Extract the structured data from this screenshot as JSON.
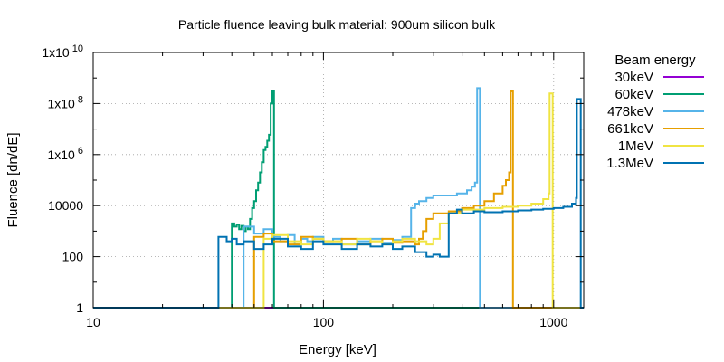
{
  "chart_data": {
    "type": "line",
    "title": "Particle fluence leaving bulk material: 900um silicon bulk",
    "xlabel": "Energy [keV]",
    "ylabel": "Fluence [dn/dE]",
    "x_scale": "log",
    "y_scale": "log",
    "xlim": [
      10,
      1350
    ],
    "ylim": [
      1,
      10000000000
    ],
    "grid": true,
    "x_ticks": [
      {
        "value": 10,
        "label": "10"
      },
      {
        "value": 100,
        "label": "100"
      },
      {
        "value": 1000,
        "label": "1000"
      }
    ],
    "y_ticks": [
      {
        "value": 1,
        "label": "1"
      },
      {
        "value": 100,
        "label": "100"
      },
      {
        "value": 10000,
        "label": "10000"
      },
      {
        "value": 1000000,
        "label": "1x10",
        "exp": "6"
      },
      {
        "value": 100000000,
        "label": "1x10",
        "exp": "8"
      },
      {
        "value": 10000000000,
        "label": "1x10",
        "exp": "10"
      }
    ],
    "legend_title": "Beam energy",
    "legend_position": "outside-right",
    "series": [
      {
        "name": "30keV",
        "color": "#9400d3",
        "x": [
          10,
          1350
        ],
        "y": [
          1,
          1
        ]
      },
      {
        "name": "60keV",
        "color": "#009e73",
        "x": [
          10,
          39.5,
          40,
          41,
          42,
          43,
          44,
          45,
          46,
          47,
          48,
          49,
          50,
          51,
          52,
          53,
          54,
          55,
          56,
          57,
          58,
          59,
          60,
          61,
          1350
        ],
        "y": [
          1,
          1,
          2000,
          1500,
          1800,
          1200,
          1600,
          1000,
          1500,
          1200,
          3000,
          8000,
          15000,
          40000,
          80000,
          200000,
          500000,
          1500000,
          2000000,
          3500000,
          6000000,
          100000000,
          300000000,
          1,
          1
        ]
      },
      {
        "name": "478keV",
        "color": "#56b4e9",
        "x": [
          10,
          40,
          45,
          50,
          55,
          60,
          65,
          70,
          75,
          80,
          85,
          90,
          100,
          110,
          120,
          140,
          160,
          180,
          200,
          220,
          240,
          250,
          260,
          280,
          300,
          340,
          380,
          420,
          440,
          455,
          465,
          470,
          478,
          480,
          1350
        ],
        "y": [
          1,
          1,
          1500,
          800,
          1200,
          600,
          400,
          700,
          300,
          500,
          400,
          600,
          400,
          500,
          300,
          400,
          500,
          350,
          450,
          600,
          8000,
          12000,
          15000,
          20000,
          25000,
          25000,
          30000,
          40000,
          55000,
          80000,
          400000000,
          400000000,
          1,
          1,
          1
        ]
      },
      {
        "name": "661keV",
        "color": "#e69f00",
        "x": [
          10,
          45,
          50,
          55,
          60,
          70,
          80,
          90,
          100,
          120,
          140,
          160,
          180,
          200,
          220,
          250,
          260,
          270,
          280,
          300,
          350,
          400,
          450,
          500,
          550,
          600,
          620,
          640,
          650,
          661,
          665,
          1350
        ],
        "y": [
          1,
          1,
          600,
          800,
          400,
          300,
          600,
          500,
          400,
          500,
          300,
          400,
          500,
          350,
          400,
          300,
          500,
          1000,
          3000,
          5000,
          6000,
          8000,
          10000,
          15000,
          30000,
          60000,
          100000,
          200000,
          300000000,
          300000000,
          1,
          1
        ]
      },
      {
        "name": "1MeV",
        "color": "#f0e442",
        "x": [
          10,
          50,
          55,
          60,
          70,
          80,
          90,
          100,
          120,
          140,
          160,
          180,
          200,
          220,
          250,
          280,
          300,
          320,
          350,
          400,
          500,
          600,
          700,
          800,
          900,
          950,
          960,
          980,
          990,
          1350
        ],
        "y": [
          1,
          1,
          500,
          700,
          400,
          300,
          500,
          400,
          300,
          500,
          400,
          300,
          400,
          500,
          400,
          300,
          500,
          2000,
          5000,
          7000,
          8000,
          9000,
          10000,
          12000,
          18000,
          30000,
          250000000,
          250000000,
          1,
          1
        ]
      },
      {
        "name": "1.3MeV",
        "color": "#0072b2",
        "x": [
          10,
          33,
          35,
          38,
          40,
          42,
          45,
          50,
          55,
          60,
          70,
          80,
          90,
          100,
          120,
          140,
          160,
          180,
          200,
          220,
          250,
          280,
          300,
          320,
          350,
          380,
          400,
          450,
          500,
          600,
          700,
          800,
          900,
          1000,
          1100,
          1200,
          1250,
          1260,
          1300,
          1310,
          1350
        ],
        "y": [
          1,
          1,
          600,
          400,
          500,
          300,
          400,
          200,
          300,
          500,
          250,
          200,
          400,
          300,
          200,
          300,
          250,
          300,
          200,
          250,
          150,
          100,
          120,
          100,
          5000,
          7000,
          5000,
          6000,
          5500,
          6000,
          6500,
          7000,
          7500,
          8000,
          9000,
          12000,
          20000,
          150000000,
          150000000,
          1,
          1
        ]
      }
    ]
  }
}
